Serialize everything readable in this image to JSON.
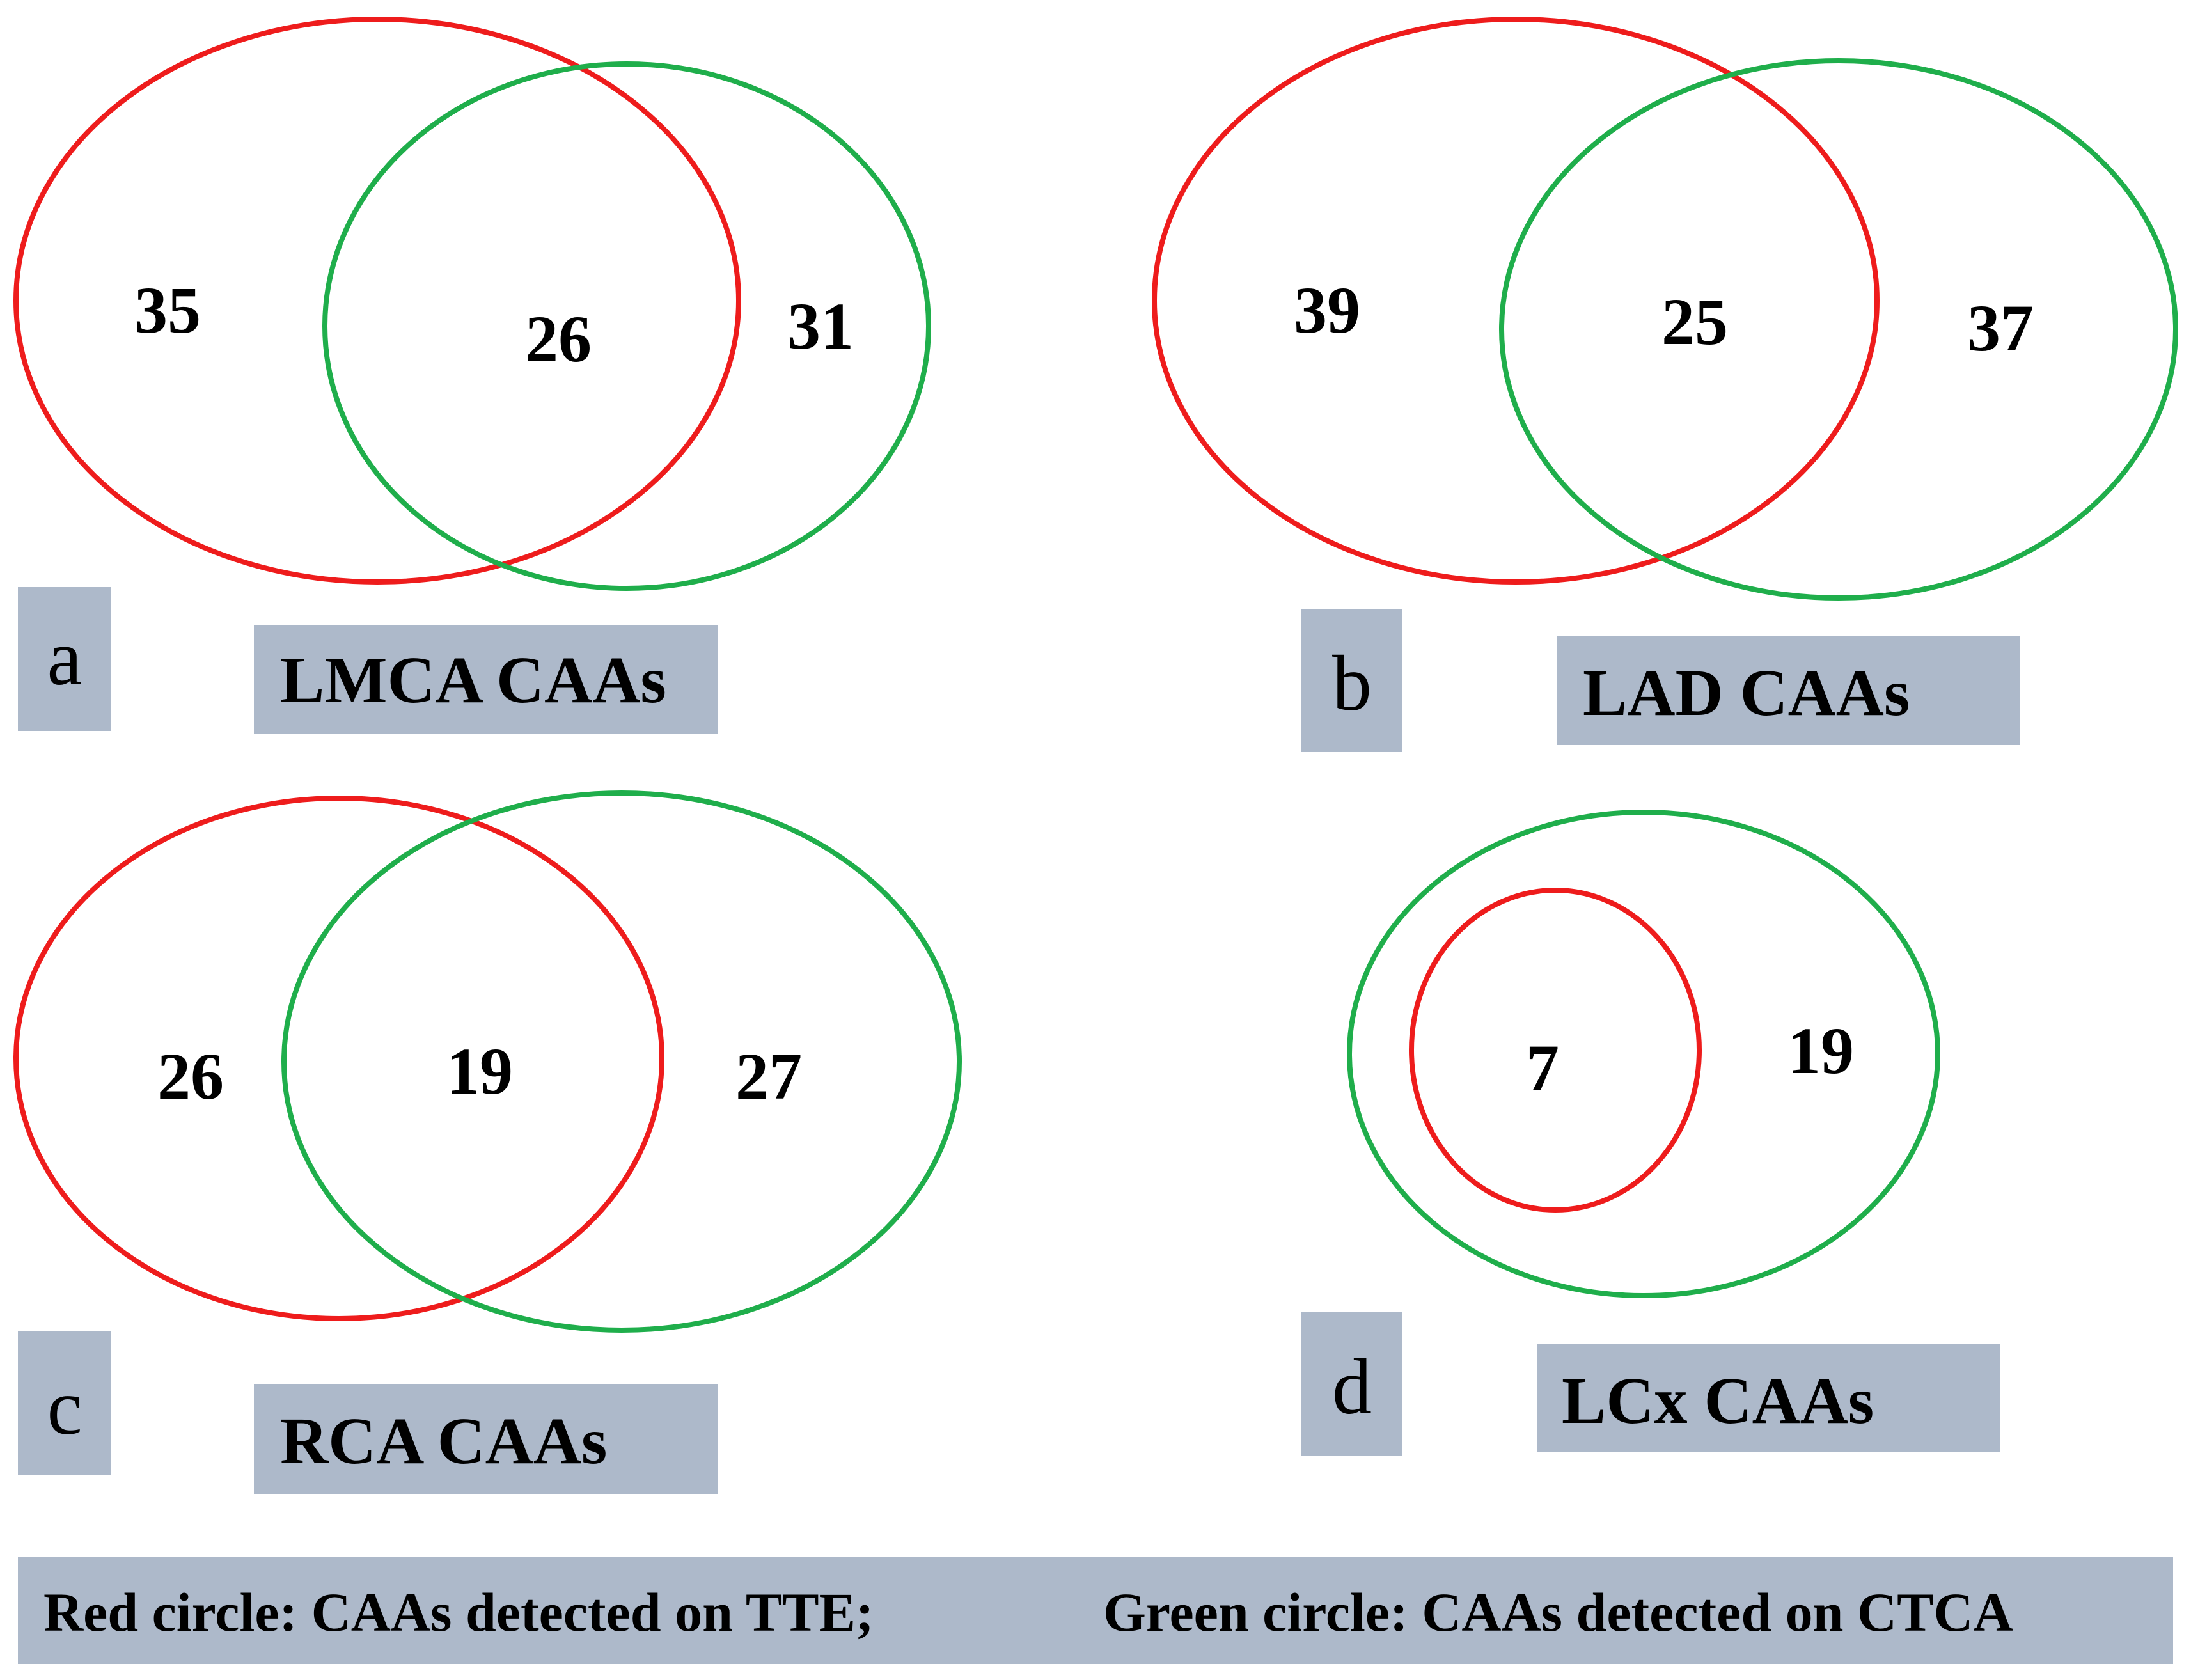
{
  "colors": {
    "red_circle": "#ee1c1c",
    "green_circle": "#1fae4b",
    "label_box": "#adb9ca"
  },
  "panels": {
    "a": {
      "letter": "a",
      "title": "LMCA CAAs",
      "tte_only": "35",
      "both": "26",
      "ctca_only": "31"
    },
    "b": {
      "letter": "b",
      "title": "LAD CAAs",
      "tte_only": "39",
      "both": "25",
      "ctca_only": "37"
    },
    "c": {
      "letter": "c",
      "title": "RCA CAAs",
      "tte_only": "26",
      "both": "19",
      "ctca_only": "27"
    },
    "d": {
      "letter": "d",
      "title": "LCx CAAs",
      "both": "7",
      "ctca_only": "19"
    }
  },
  "legend": {
    "red_text": "Red circle: CAAs detected on TTE;",
    "green_text": "Green circle: CAAs detected on CTCA"
  }
}
